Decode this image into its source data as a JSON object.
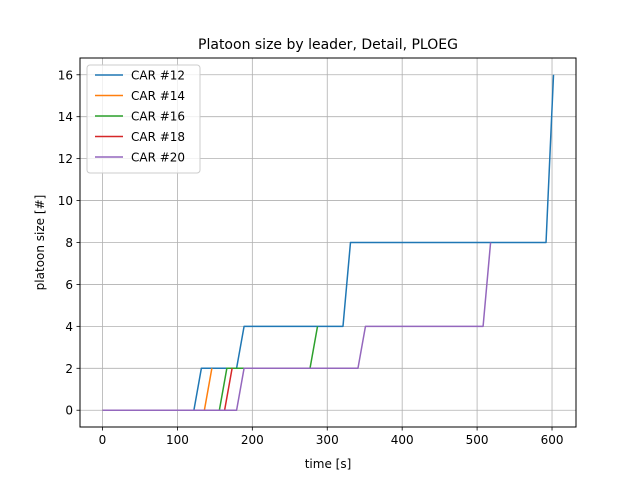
{
  "chart_data": {
    "type": "line",
    "title": "Platoon size by leader, Detail, PLOEG",
    "xlabel": "time [s]",
    "ylabel": "platoon size [#]",
    "xlim": [
      -30,
      632
    ],
    "ylim": [
      -0.8,
      16.8
    ],
    "xticks": [
      0,
      100,
      200,
      300,
      400,
      500,
      600
    ],
    "yticks": [
      0,
      2,
      4,
      6,
      8,
      10,
      12,
      14,
      16
    ],
    "grid": true,
    "legend_position": "top-left",
    "series": [
      {
        "name": "CAR #12",
        "color": "#1f77b4",
        "points": [
          [
            0,
            0
          ],
          [
            122,
            0
          ],
          [
            132,
            2
          ],
          [
            179,
            2
          ],
          [
            189,
            4
          ],
          [
            321,
            4
          ],
          [
            331,
            8
          ],
          [
            592,
            8
          ],
          [
            602,
            16
          ]
        ]
      },
      {
        "name": "CAR #14",
        "color": "#ff7f0e",
        "points": [
          [
            0,
            0
          ],
          [
            136,
            0
          ],
          [
            146,
            2
          ]
        ]
      },
      {
        "name": "CAR #16",
        "color": "#2ca02c",
        "points": [
          [
            0,
            0
          ],
          [
            156,
            0
          ],
          [
            166,
            2
          ],
          [
            277,
            2
          ],
          [
            287,
            4
          ]
        ]
      },
      {
        "name": "CAR #18",
        "color": "#d62728",
        "points": [
          [
            0,
            0
          ],
          [
            163,
            0
          ],
          [
            173,
            2
          ]
        ]
      },
      {
        "name": "CAR #20",
        "color": "#9467bd",
        "points": [
          [
            0,
            0
          ],
          [
            179,
            0
          ],
          [
            189,
            2
          ],
          [
            341,
            2
          ],
          [
            351,
            4
          ],
          [
            508,
            4
          ],
          [
            518,
            8
          ]
        ]
      }
    ]
  }
}
